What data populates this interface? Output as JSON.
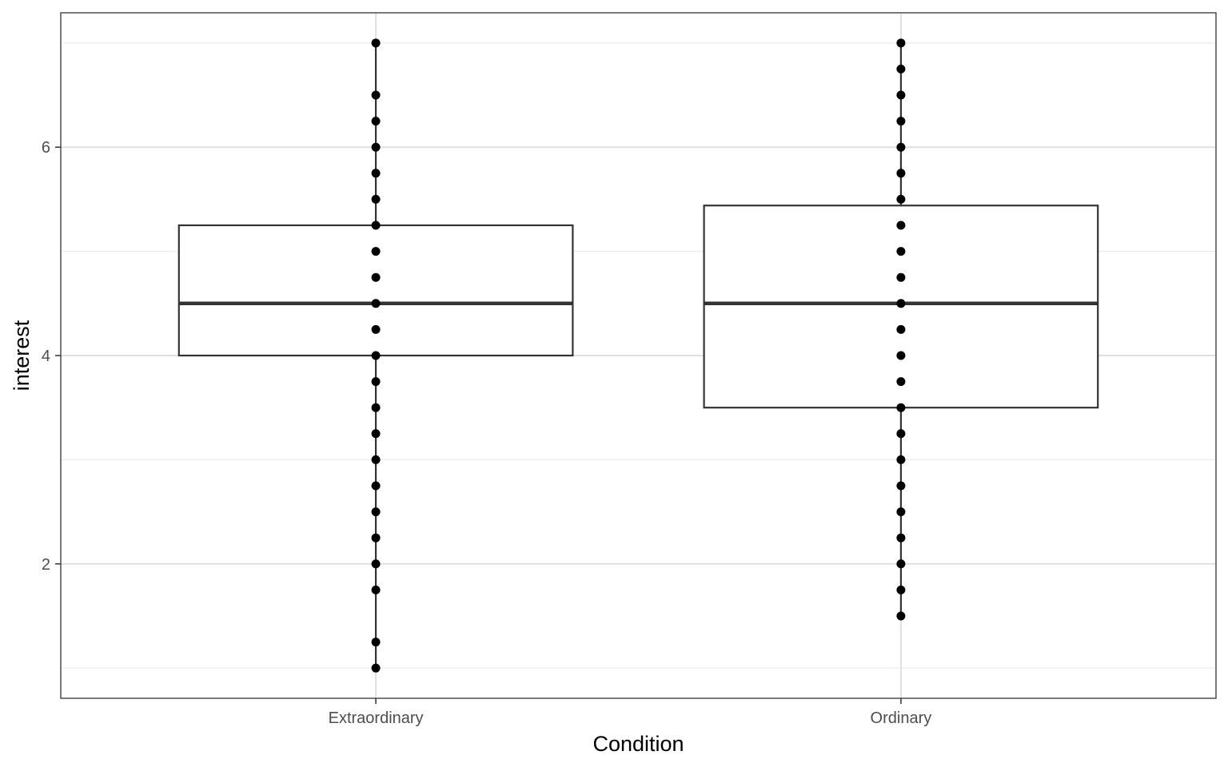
{
  "chart_data": {
    "type": "boxplot",
    "xlabel": "Condition",
    "ylabel": "interest",
    "categories": [
      "Extraordinary",
      "Ordinary"
    ],
    "ylim": [
      0.71,
      7.29
    ],
    "y_ticks": [
      2,
      4,
      6
    ],
    "y_tick_labels": [
      "2",
      "4",
      "6"
    ],
    "y_minor_ticks": [
      1,
      3,
      5,
      7
    ],
    "grid": true,
    "boxes": [
      {
        "category": "Extraordinary",
        "q1": 4.0,
        "median": 4.5,
        "q3": 5.25,
        "whisker_low": 1.0,
        "whisker_high": 7.0,
        "points": [
          1.0,
          1.25,
          1.75,
          2.0,
          2.25,
          2.5,
          2.75,
          3.0,
          3.25,
          3.5,
          3.75,
          4.0,
          4.25,
          4.5,
          4.75,
          5.0,
          5.25,
          5.5,
          5.75,
          6.0,
          6.25,
          6.5,
          7.0
        ]
      },
      {
        "category": "Ordinary",
        "q1": 3.5,
        "median": 4.5,
        "q3": 5.44,
        "whisker_low": 1.5,
        "whisker_high": 7.0,
        "points": [
          1.5,
          1.75,
          2.0,
          2.25,
          2.5,
          2.75,
          3.0,
          3.25,
          3.5,
          3.75,
          4.0,
          4.25,
          4.5,
          4.75,
          5.0,
          5.25,
          5.5,
          5.75,
          6.0,
          6.25,
          6.5,
          6.75,
          7.0
        ]
      }
    ]
  }
}
